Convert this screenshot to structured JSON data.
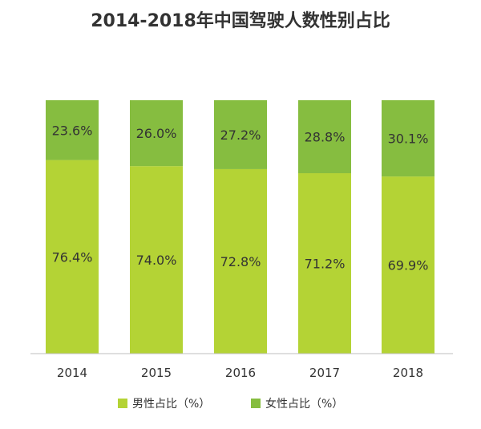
{
  "chart_data": {
    "type": "bar",
    "stacked": true,
    "percent_stacked": true,
    "title": "2014-2018年中国驾驶人数性别占比",
    "categories": [
      "2014",
      "2015",
      "2016",
      "2017",
      "2018"
    ],
    "series": [
      {
        "name": "男性占比（%）",
        "values": [
          76.4,
          74.0,
          72.8,
          71.2,
          69.9
        ],
        "color": "#b4d335"
      },
      {
        "name": "女性占比（%）",
        "values": [
          23.6,
          26.0,
          27.2,
          28.8,
          30.1
        ],
        "color": "#86bd40"
      }
    ],
    "data_labels": {
      "male": [
        "76.4%",
        "74.0%",
        "72.8%",
        "71.2%",
        "69.9%"
      ],
      "female": [
        "23.6%",
        "26.0%",
        "27.2%",
        "28.8%",
        "30.1%"
      ]
    },
    "ylim": [
      0,
      100
    ],
    "grid": false,
    "legend_position": "bottom"
  }
}
